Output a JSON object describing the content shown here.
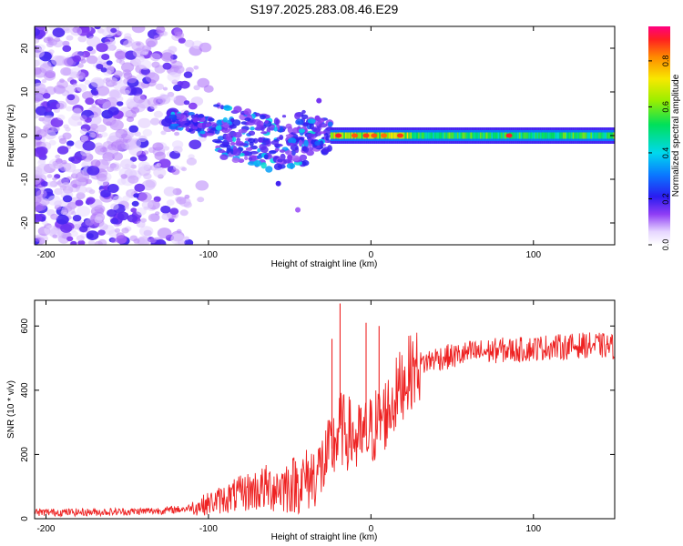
{
  "title": "S197.2025.283.08.46.E29",
  "chart_data": [
    {
      "type": "heatmap",
      "xlabel": "Height of straight line (km)",
      "ylabel": "Frequency (Hz)",
      "xlim": [
        -207,
        150
      ],
      "ylim": [
        -25,
        25
      ],
      "xticks": [
        -200,
        -100,
        0,
        100
      ],
      "yticks": [
        -20,
        -10,
        0,
        10,
        20
      ],
      "colorbar": {
        "label": "Normalized spectral amplitude",
        "range": [
          0,
          0.95
        ],
        "ticks": [
          0.0,
          0.2,
          0.4,
          0.6,
          0.8
        ]
      },
      "features": [
        {
          "region": "noise",
          "x_range": [
            -207,
            -105
          ],
          "freq_range": [
            -25,
            25
          ],
          "amplitude_range": [
            0.02,
            0.15
          ]
        },
        {
          "region": "transition",
          "x_range": [
            -120,
            -25
          ],
          "freq_center": [
            3,
            0,
            -5
          ],
          "amplitude_range": [
            0.1,
            0.3
          ]
        },
        {
          "region": "carrier",
          "x_range": [
            -25,
            150
          ],
          "freq_center": 0,
          "amplitude_range": [
            0.3,
            0.95
          ]
        }
      ]
    },
    {
      "type": "line",
      "xlabel": "Height of straight line (km)",
      "ylabel": "SNR (10 * v/v)",
      "xlim": [
        -207,
        150
      ],
      "ylim": [
        0,
        680
      ],
      "xticks": [
        -200,
        -100,
        0,
        100
      ],
      "yticks": [
        0,
        200,
        400,
        600
      ],
      "color": "#ee2222",
      "series": [
        {
          "name": "SNR",
          "x": [
            -207,
            -180,
            -150,
            -130,
            -115,
            -105,
            -95,
            -85,
            -75,
            -65,
            -55,
            -45,
            -38,
            -32,
            -27,
            -22,
            -19,
            -16,
            -12,
            -8,
            -4,
            0,
            4,
            8,
            12,
            16,
            20,
            25,
            30,
            35,
            40,
            50,
            60,
            70,
            80,
            90,
            100,
            110,
            120,
            130,
            140,
            150
          ],
          "y": [
            20,
            20,
            22,
            25,
            30,
            40,
            55,
            70,
            85,
            95,
            100,
            110,
            125,
            150,
            185,
            240,
            280,
            270,
            260,
            240,
            255,
            270,
            300,
            320,
            350,
            390,
            430,
            460,
            480,
            490,
            500,
            505,
            515,
            520,
            525,
            525,
            530,
            535,
            535,
            540,
            540,
            535
          ]
        }
      ],
      "spikes": [
        {
          "x": -19,
          "y": 670
        },
        {
          "x": -24,
          "y": 560
        },
        {
          "x": -3,
          "y": 610
        },
        {
          "x": 5,
          "y": 600
        }
      ]
    }
  ]
}
